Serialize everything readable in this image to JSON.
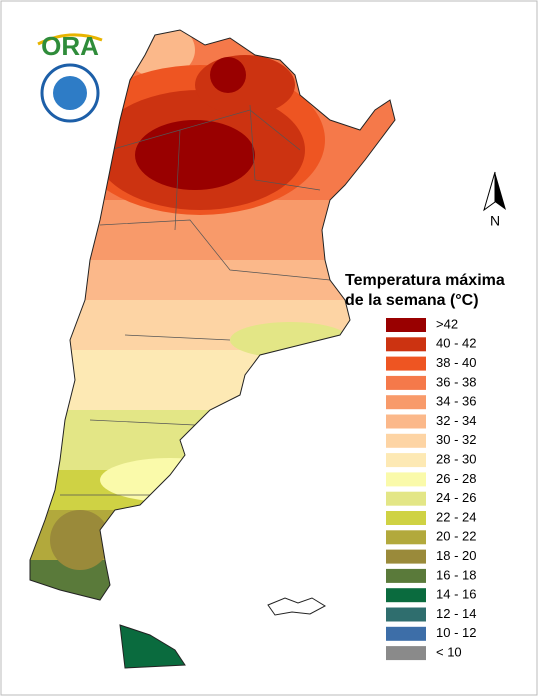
{
  "logo": {
    "text": "ORA"
  },
  "north_label": "N",
  "legend": {
    "title_lines": [
      "Temperatura máxima",
      "de la semana (°C)"
    ],
    "items": [
      {
        "label": ">42",
        "color": "#990000"
      },
      {
        "label": "40 - 42",
        "color": "#cc3311"
      },
      {
        "label": "38 - 40",
        "color": "#ee5522"
      },
      {
        "label": "36 - 38",
        "color": "#f5794a"
      },
      {
        "label": "34 - 36",
        "color": "#f89a6a"
      },
      {
        "label": "32 - 34",
        "color": "#fbb88a"
      },
      {
        "label": "30 - 32",
        "color": "#fdd4a4"
      },
      {
        "label": "28 - 30",
        "color": "#fde9b4"
      },
      {
        "label": "26 - 28",
        "color": "#fafaaa"
      },
      {
        "label": "24 - 26",
        "color": "#e3e686"
      },
      {
        "label": "22 - 24",
        "color": "#cfd244"
      },
      {
        "label": "20 - 22",
        "color": "#b2a93c"
      },
      {
        "label": "18 - 20",
        "color": "#9a8a3a"
      },
      {
        "label": "16 - 18",
        "color": "#5a7a3a"
      },
      {
        "label": "14 - 16",
        "color": "#0a6b3e"
      },
      {
        "label": "12 - 14",
        "color": "#2f6e6e"
      },
      {
        "label": "10 - 12",
        "color": "#3d6ea8"
      },
      {
        "label": "< 10",
        "color": "#8a8a8a"
      }
    ]
  }
}
